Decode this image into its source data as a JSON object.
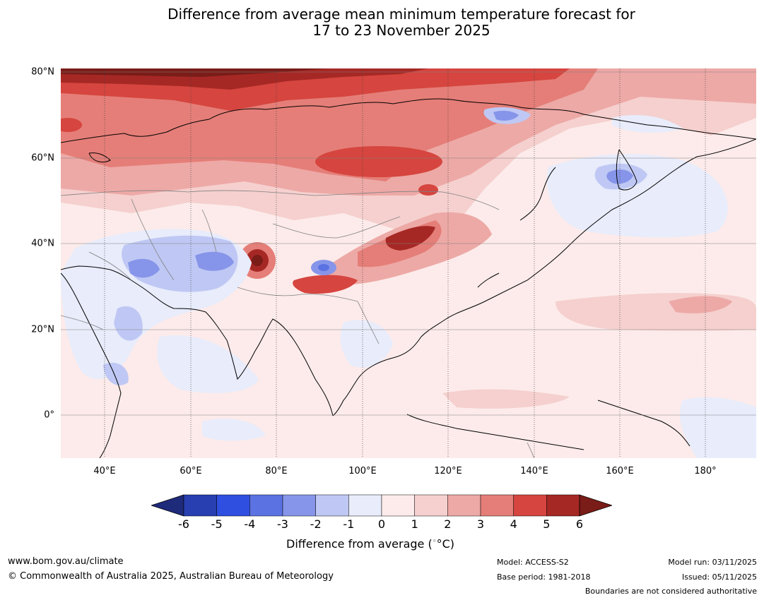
{
  "title": {
    "line1": "Difference from average mean minimum temperature forecast for",
    "line2": "17 to 23 November 2025"
  },
  "map": {
    "region": "Asia and western Pacific",
    "lat_labels": [
      "80°N",
      "60°N",
      "40°N",
      "20°N",
      "0°"
    ],
    "lon_labels": [
      "40°E",
      "60°E",
      "80°E",
      "100°E",
      "120°E",
      "140°E",
      "160°E",
      "180°"
    ]
  },
  "colorbar": {
    "ticks": [
      "-6",
      "-5",
      "-4",
      "-3",
      "-2",
      "-1",
      "0",
      "1",
      "2",
      "3",
      "4",
      "5",
      "6"
    ],
    "colors": [
      "#1e2a7a",
      "#273fb0",
      "#2f4fe0",
      "#5b72e2",
      "#8695e9",
      "#bfc8f4",
      "#e8ecfb",
      "#fcebea",
      "#f5d0ce",
      "#eda9a6",
      "#e57e78",
      "#d6453f",
      "#a62824",
      "#7a1c18"
    ],
    "label": "Difference from average (°C)",
    "label_prefix": "Difference from average (",
    "label_unit": "°C",
    "label_suffix": ")"
  },
  "footer": {
    "website": "www.bom.gov.au/climate",
    "copyright": "© Commonwealth of Australia 2025, Australian Bureau of Meteorology",
    "model": "Model: ACCESS-S2",
    "base_period": "Base period: 1981-2018",
    "model_run": "Model run: 03/11/2025",
    "issued": "Issued: 05/11/2025",
    "disclaimer": "Boundaries are not considered authoritative"
  }
}
